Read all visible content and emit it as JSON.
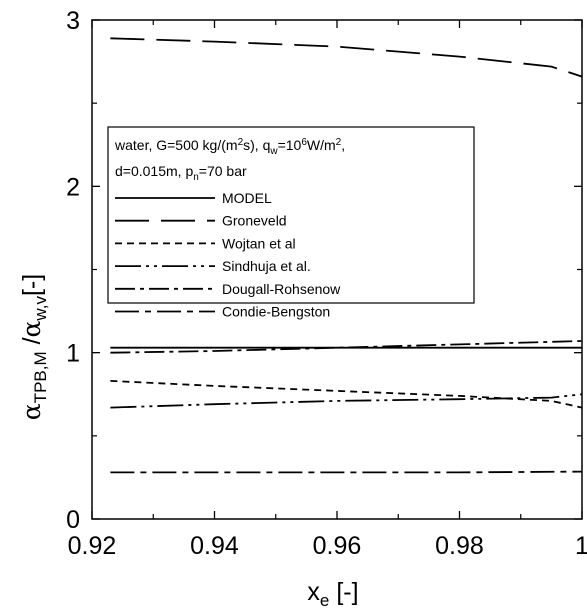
{
  "chart_data": {
    "type": "line",
    "xlim": [
      0.92,
      1.0
    ],
    "ylim": [
      0,
      3
    ],
    "x_ticks": [
      "0.92",
      "0.94",
      "0.96",
      "0.98",
      "1"
    ],
    "y_ticks": [
      "0",
      "1",
      "2",
      "3"
    ],
    "xlabel": {
      "main": "x",
      "sub": "e",
      "unit": " [-]"
    },
    "ylabel": {
      "alpha1": "α",
      "sub1": "TPB,M",
      "slash": " /",
      "alpha2": "α",
      "sub2": "w,v",
      "unit": "[-]"
    },
    "legend_header": {
      "line1": {
        "t1": "water, G=500 kg/(m",
        "sup1": "2",
        "t2": "s), q",
        "sub1": "w",
        "t3": "=10",
        "sup2": "6",
        "t4": "W/m",
        "sup3": "2",
        "t5": ","
      },
      "line2": {
        "t1": "d=0.015m, p",
        "sub1": "n",
        "t2": "=70 bar"
      }
    },
    "series": [
      {
        "name": "MODEL",
        "style": "solid",
        "x": [
          0.923,
          0.94,
          0.96,
          0.98,
          1.0
        ],
        "y": [
          1.03,
          1.03,
          1.03,
          1.03,
          1.03
        ]
      },
      {
        "name": "Groneveld",
        "style": "long-dash",
        "x": [
          0.923,
          0.94,
          0.96,
          0.98,
          0.995,
          1.0
        ],
        "y": [
          2.89,
          2.87,
          2.84,
          2.78,
          2.72,
          2.66
        ]
      },
      {
        "name": "Wojtan et al",
        "style": "dash",
        "x": [
          0.923,
          0.94,
          0.96,
          0.98,
          0.995,
          1.0
        ],
        "y": [
          0.83,
          0.8,
          0.77,
          0.74,
          0.71,
          0.67
        ]
      },
      {
        "name": "Sindhuja et al.",
        "style": "dash-dot-dot",
        "x": [
          0.923,
          0.94,
          0.96,
          0.98,
          0.995,
          1.0
        ],
        "y": [
          0.67,
          0.69,
          0.71,
          0.72,
          0.73,
          0.75
        ]
      },
      {
        "name": "Dougall-Rohsenow",
        "style": "dash-dot",
        "x": [
          0.923,
          0.94,
          0.96,
          0.98,
          1.0
        ],
        "y": [
          1.0,
          1.01,
          1.03,
          1.05,
          1.07
        ]
      },
      {
        "name": "Condie-Bengston",
        "style": "long-dash-dot",
        "x": [
          0.923,
          0.94,
          0.96,
          0.98,
          1.0
        ],
        "y": [
          0.28,
          0.28,
          0.28,
          0.28,
          0.285
        ]
      }
    ],
    "line_color": "#000000",
    "grid": false,
    "legend_position": "upper-left inside"
  }
}
